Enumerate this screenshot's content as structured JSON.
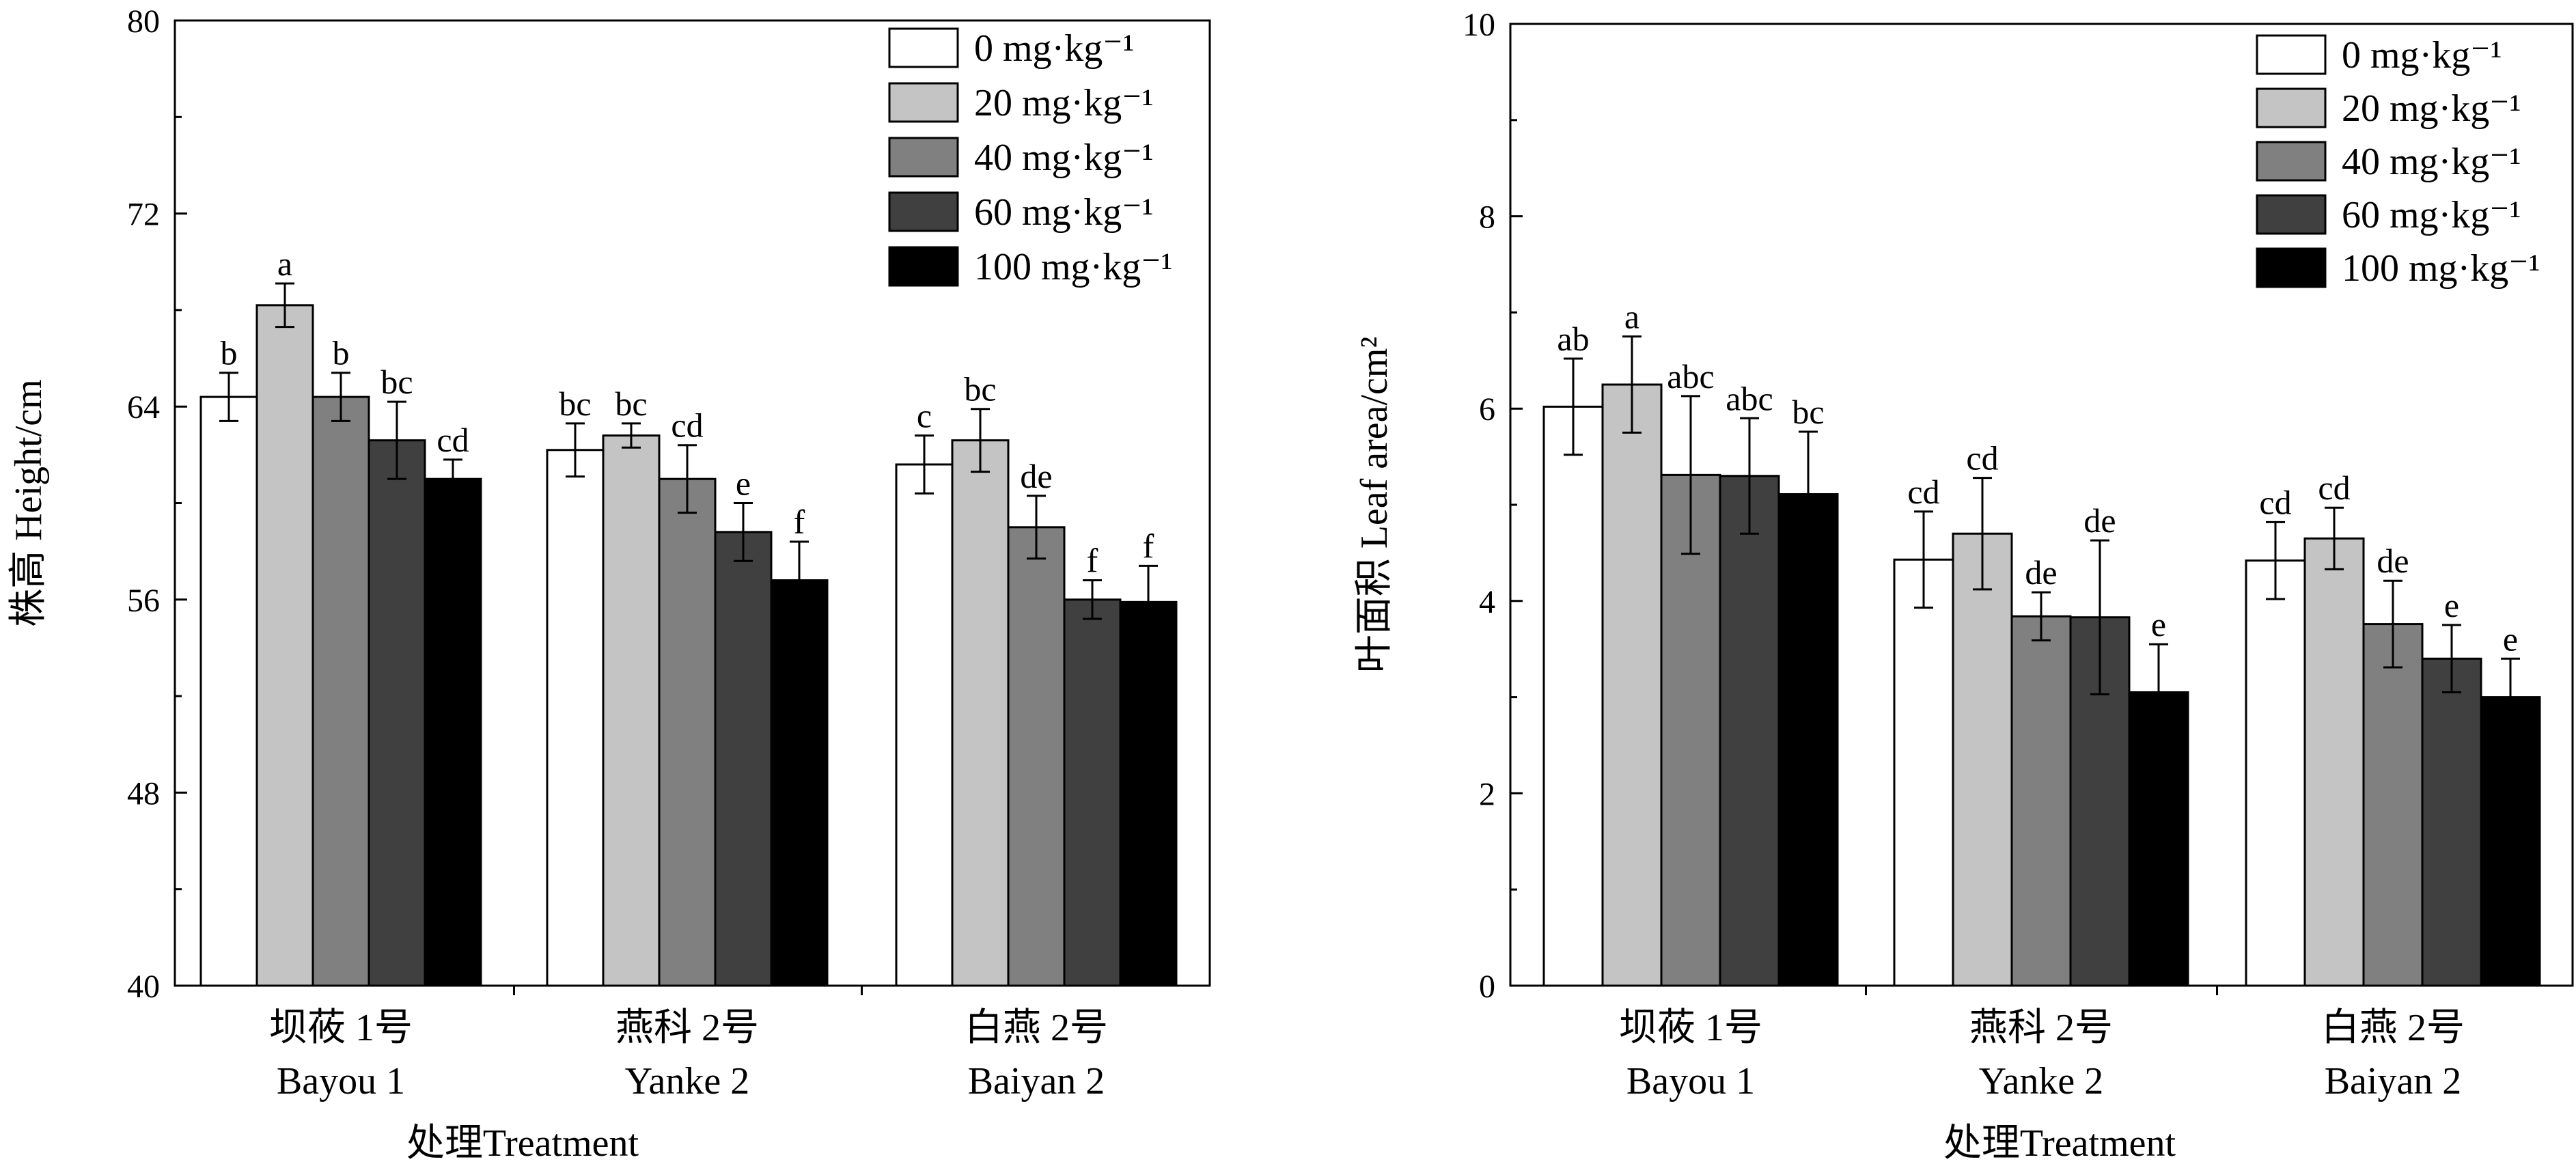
{
  "chart_data": [
    {
      "type": "bar",
      "ylabel": "株高 Height/cm",
      "xlabel": "处理Treatment",
      "ylim": [
        40,
        80
      ],
      "yticks": [
        40,
        48,
        56,
        64,
        72,
        80
      ],
      "grid": false,
      "legend_position": "top-right",
      "categories": [
        {
          "cn": "坝莜 1号",
          "en": "Bayou 1"
        },
        {
          "cn": "燕科 2号",
          "en": "Yanke 2"
        },
        {
          "cn": "白燕 2号",
          "en": "Baiyan 2"
        }
      ],
      "series": [
        {
          "name": "0 mg·kg⁻¹",
          "color": "#ffffff",
          "values": [
            64.4,
            62.2,
            61.6
          ],
          "errors": [
            1.0,
            1.1,
            1.2
          ],
          "letters": [
            "b",
            "bc",
            "c"
          ]
        },
        {
          "name": "20 mg·kg⁻¹",
          "color": "#c4c4c4",
          "values": [
            68.2,
            62.8,
            62.6
          ],
          "errors": [
            0.9,
            0.5,
            1.3
          ],
          "letters": [
            "a",
            "bc",
            "bc"
          ]
        },
        {
          "name": "40 mg·kg⁻¹",
          "color": "#808080",
          "values": [
            64.4,
            61.0,
            59.0
          ],
          "errors": [
            1.0,
            1.4,
            1.3
          ],
          "letters": [
            "b",
            "cd",
            "de"
          ]
        },
        {
          "name": "60 mg·kg⁻¹",
          "color": "#404040",
          "values": [
            62.6,
            58.8,
            56.0
          ],
          "errors": [
            1.6,
            1.2,
            0.8
          ],
          "letters": [
            "bc",
            "e",
            "f"
          ]
        },
        {
          "name": "100 mg·kg⁻¹",
          "color": "#000000",
          "values": [
            61.0,
            56.8,
            55.9
          ],
          "errors": [
            0.8,
            1.6,
            1.5
          ],
          "letters": [
            "cd",
            "f",
            "f"
          ]
        }
      ]
    },
    {
      "type": "bar",
      "ylabel": "叶面积 Leaf area/cm²",
      "xlabel": "处理Treatment",
      "ylim": [
        0,
        10
      ],
      "yticks": [
        0,
        2,
        4,
        6,
        8,
        10
      ],
      "grid": false,
      "legend_position": "top-right",
      "categories": [
        {
          "cn": "坝莜 1号",
          "en": "Bayou 1"
        },
        {
          "cn": "燕科 2号",
          "en": "Yanke 2"
        },
        {
          "cn": "白燕 2号",
          "en": "Baiyan 2"
        }
      ],
      "series": [
        {
          "name": "0 mg·kg⁻¹",
          "color": "#ffffff",
          "values": [
            6.02,
            4.43,
            4.42
          ],
          "errors": [
            0.5,
            0.5,
            0.4
          ],
          "letters": [
            "ab",
            "cd",
            "cd"
          ]
        },
        {
          "name": "20 mg·kg⁻¹",
          "color": "#c4c4c4",
          "values": [
            6.25,
            4.7,
            4.65
          ],
          "errors": [
            0.5,
            0.58,
            0.32
          ],
          "letters": [
            "a",
            "cd",
            "cd"
          ]
        },
        {
          "name": "40 mg·kg⁻¹",
          "color": "#808080",
          "values": [
            5.31,
            3.84,
            3.76
          ],
          "errors": [
            0.82,
            0.25,
            0.45
          ],
          "letters": [
            "abc",
            "de",
            "de"
          ]
        },
        {
          "name": "60 mg·kg⁻¹",
          "color": "#404040",
          "values": [
            5.3,
            3.83,
            3.4
          ],
          "errors": [
            0.6,
            0.8,
            0.35
          ],
          "letters": [
            "abc",
            "de",
            "e"
          ]
        },
        {
          "name": "100 mg·kg⁻¹",
          "color": "#000000",
          "values": [
            5.11,
            3.05,
            3.0
          ],
          "errors": [
            0.65,
            0.5,
            0.4
          ],
          "letters": [
            "bc",
            "e",
            "e"
          ]
        }
      ]
    }
  ]
}
